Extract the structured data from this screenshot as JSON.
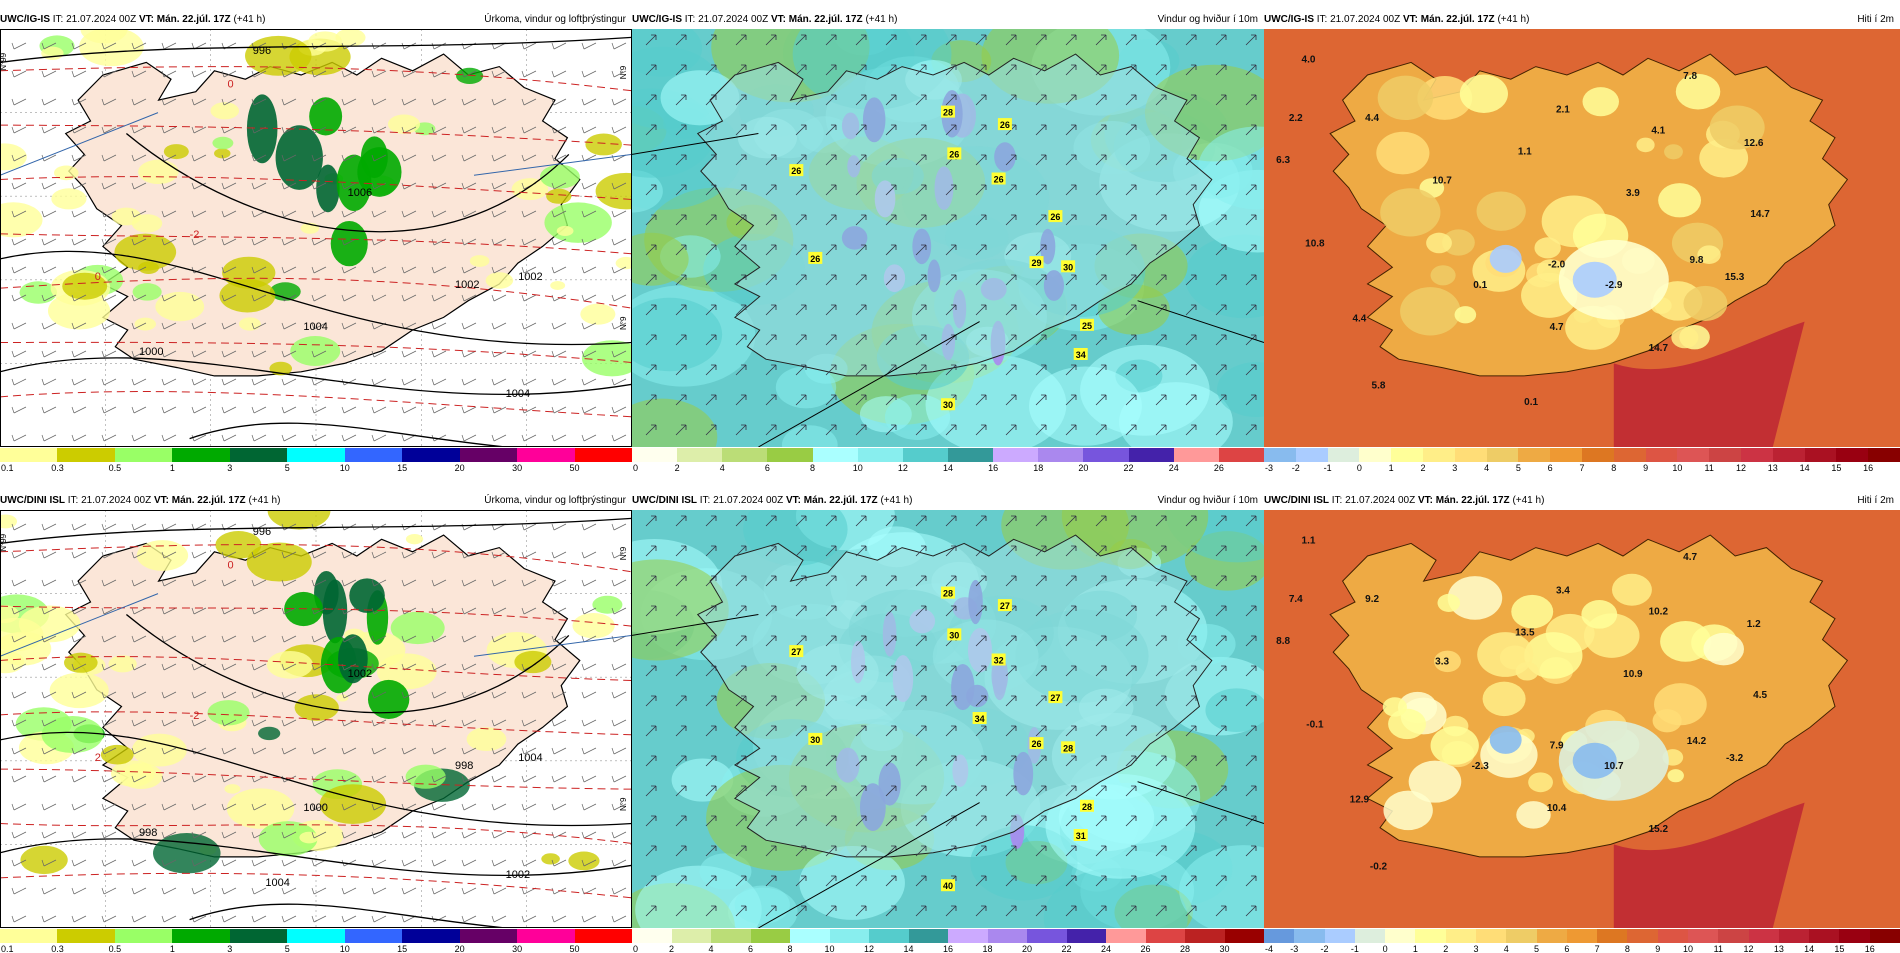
{
  "rows": [
    {
      "panels": [
        {
          "model": "UWC/IG-IS",
          "it_label": "IT:",
          "it_value": "21.07.2024 00Z",
          "vt_label": "VT:",
          "vt_value": "Mán. 22.júl. 17Z",
          "lead": "(+41 h)",
          "title": "Úrkoma, vindur og loftþrýstingur",
          "kind": "precip",
          "scale": {
            "ticks": [
              "0.1",
              "0.3",
              "0.5",
              "1",
              "3",
              "5",
              "10",
              "15",
              "20",
              "30",
              "50"
            ],
            "colors": [
              "#ffff99",
              "#cccc00",
              "#99ff66",
              "#00aa00",
              "#006633",
              "#00ffff",
              "#3366ff",
              "#000099",
              "#660066",
              "#ff0099",
              "#ff0000"
            ]
          },
          "isobars": [
            "996",
            "1000",
            "1002",
            "1004",
            "1006",
            "1002",
            "1004"
          ],
          "temp_isolines": [
            "0",
            "-2",
            "0"
          ],
          "edge_labels": [
            "N°9",
            "N°9",
            "N°99"
          ]
        },
        {
          "model": "UWC/IG-IS",
          "it_label": "IT:",
          "it_value": "21.07.2024 00Z",
          "vt_label": "VT:",
          "vt_value": "Mán. 22.júl. 17Z",
          "lead": "(+41 h)",
          "title": "Vindur og hviður í 10m",
          "kind": "wind",
          "gusts": [
            "26",
            "28",
            "26",
            "26",
            "26",
            "26",
            "26",
            "29",
            "30",
            "25",
            "34",
            "30"
          ],
          "scale": {
            "ticks": [
              "0",
              "2",
              "4",
              "6",
              "8",
              "10",
              "12",
              "14",
              "16",
              "18",
              "20",
              "22",
              "24",
              "26"
            ],
            "colors": [
              "#ffffee",
              "#ddeeaa",
              "#bbdd77",
              "#99cc44",
              "#aaffff",
              "#88eeee",
              "#55cccc",
              "#339999",
              "#ccaaff",
              "#aa88ee",
              "#7755dd",
              "#4422aa",
              "#ff9999",
              "#dd4444"
            ]
          }
        },
        {
          "model": "UWC/IG-IS",
          "it_label": "IT:",
          "it_value": "21.07.2024 00Z",
          "vt_label": "VT:",
          "vt_value": "Mán. 22.júl. 17Z",
          "lead": "(+41 h)",
          "title": "Hiti í 2m",
          "kind": "temp",
          "temps": [
            "4.0",
            "2.2",
            "4.4",
            "6.3",
            "2.1",
            "7.8",
            "1.1",
            "4.1",
            "12.6",
            "10.7",
            "3.9",
            "14.7",
            "10.8",
            "0.1",
            "-2.0",
            "9.8",
            "15.3",
            "-2.9",
            "4.4",
            "4.7",
            "14.7",
            "5.8",
            "0.1"
          ],
          "scale": {
            "ticks": [
              "-3",
              "-2",
              "-1",
              "0",
              "1",
              "2",
              "3",
              "4",
              "5",
              "6",
              "7",
              "8",
              "9",
              "10",
              "11",
              "12",
              "13",
              "14",
              "15",
              "16"
            ],
            "colors": [
              "#88bbee",
              "#aaccff",
              "#ddeedd",
              "#ffffcc",
              "#ffff99",
              "#ffee88",
              "#ffdd77",
              "#eecc66",
              "#eeaa44",
              "#ee9933",
              "#dd7722",
              "#dd6633",
              "#dd5544",
              "#dd5555",
              "#cc4444",
              "#cc3344",
              "#bb2233",
              "#aa1122",
              "#990011",
              "#880000"
            ]
          },
          "edge_labels": []
        }
      ]
    },
    {
      "panels": [
        {
          "model": "UWC/DINI ISL",
          "it_label": "IT:",
          "it_value": "21.07.2024 00Z",
          "vt_label": "VT:",
          "vt_value": "Mán. 22.júl. 17Z",
          "lead": "(+41 h)",
          "title": "Úrkoma, vindur og loftþrýstingur",
          "kind": "precip",
          "scale": {
            "ticks": [
              "0.1",
              "0.3",
              "0.5",
              "1",
              "3",
              "5",
              "10",
              "15",
              "20",
              "30",
              "50"
            ],
            "colors": [
              "#ffff99",
              "#cccc00",
              "#99ff66",
              "#00aa00",
              "#006633",
              "#00ffff",
              "#3366ff",
              "#000099",
              "#660066",
              "#ff0099",
              "#ff0000"
            ]
          },
          "isobars": [
            "996",
            "998",
            "998",
            "1000",
            "1002",
            "1004",
            "1002",
            "1004"
          ],
          "temp_isolines": [
            "0",
            "-2",
            "2"
          ],
          "edge_labels": [
            "N°9",
            "N°9",
            "N°99"
          ]
        },
        {
          "model": "UWC/DINI ISL",
          "it_label": "IT:",
          "it_value": "21.07.2024 00Z",
          "vt_label": "VT:",
          "vt_value": "Mán. 22.júl. 17Z",
          "lead": "(+41 h)",
          "title": "Vindur og hviður í 10m",
          "kind": "wind",
          "gusts": [
            "27",
            "28",
            "27",
            "30",
            "32",
            "30",
            "27",
            "26",
            "28",
            "28",
            "31",
            "40",
            "34"
          ],
          "scale": {
            "ticks": [
              "0",
              "2",
              "4",
              "6",
              "8",
              "10",
              "12",
              "14",
              "16",
              "18",
              "20",
              "22",
              "24",
              "26",
              "28",
              "30"
            ],
            "colors": [
              "#ffffee",
              "#ddeeaa",
              "#bbdd77",
              "#99cc44",
              "#aaffff",
              "#88eeee",
              "#55cccc",
              "#339999",
              "#ccaaff",
              "#aa88ee",
              "#7755dd",
              "#4422aa",
              "#ff9999",
              "#dd4444",
              "#bb2222",
              "#990000"
            ]
          }
        },
        {
          "model": "UWC/DINI ISL",
          "it_label": "IT:",
          "it_value": "21.07.2024 00Z",
          "vt_label": "VT:",
          "vt_value": "Mán. 22.júl. 17Z",
          "lead": "(+41 h)",
          "title": "Hiti í 2m",
          "kind": "temp",
          "temps": [
            "1.1",
            "7.4",
            "9.2",
            "8.8",
            "3.4",
            "4.7",
            "13.5",
            "10.2",
            "1.2",
            "3.3",
            "10.9",
            "4.5",
            "-0.1",
            "-2.3",
            "7.9",
            "14.2",
            "-3.2",
            "10.7",
            "12.9",
            "10.4",
            "15.2",
            "-0.2"
          ],
          "scale": {
            "ticks": [
              "-4",
              "-3",
              "-2",
              "-1",
              "0",
              "1",
              "2",
              "3",
              "4",
              "5",
              "6",
              "7",
              "8",
              "9",
              "10",
              "11",
              "12",
              "13",
              "14",
              "15",
              "16"
            ],
            "colors": [
              "#6699dd",
              "#88bbee",
              "#aaccff",
              "#ddeedd",
              "#ffffcc",
              "#ffff99",
              "#ffee88",
              "#ffdd77",
              "#eecc66",
              "#eeaa44",
              "#ee9933",
              "#dd7722",
              "#dd6633",
              "#dd5544",
              "#dd5555",
              "#cc4444",
              "#cc3344",
              "#bb2233",
              "#aa1122",
              "#990011",
              "#880000"
            ]
          }
        }
      ]
    }
  ]
}
